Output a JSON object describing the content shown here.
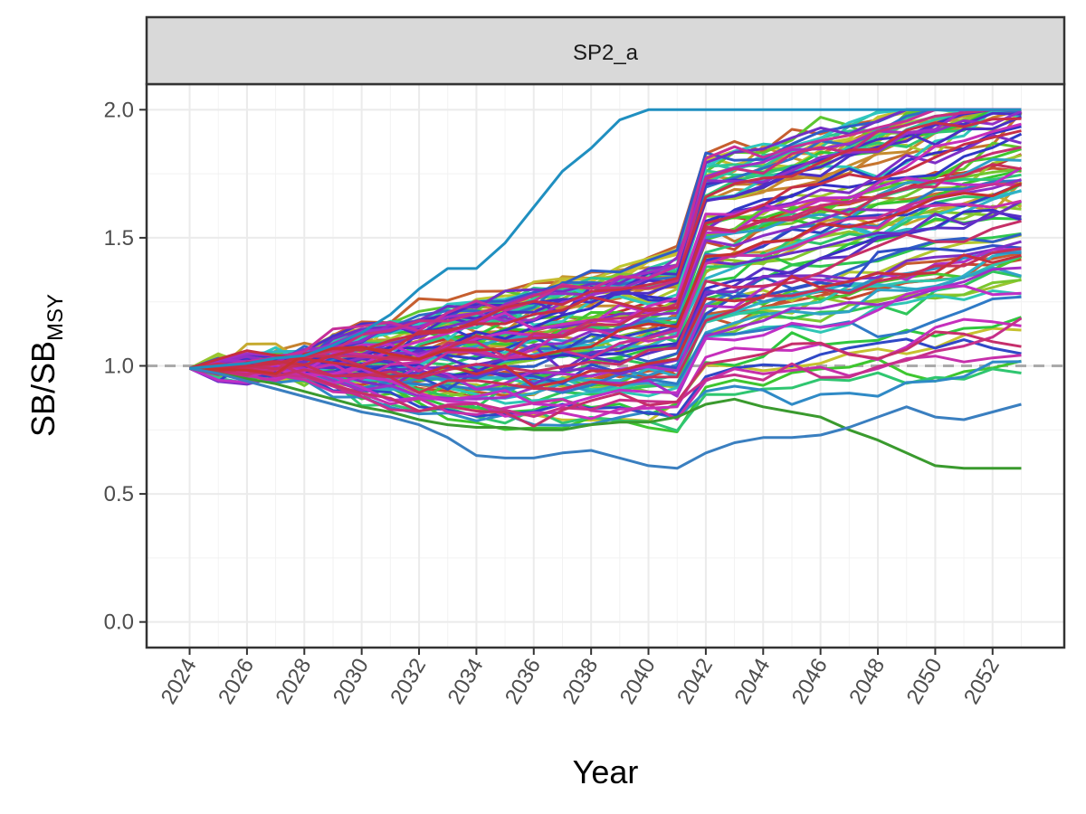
{
  "chart_data": {
    "type": "line",
    "panel": "SP2_a",
    "xlabel": "Year",
    "ylabel": {
      "main": "SB/SB",
      "sub": "MSY"
    },
    "x_range": [
      2024,
      2053
    ],
    "xlim": [
      2022.5,
      2054.5
    ],
    "ylim": [
      -0.1,
      2.1
    ],
    "x_ticks": [
      "2024",
      "2026",
      "2028",
      "2030",
      "2032",
      "2034",
      "2036",
      "2038",
      "2040",
      "2042",
      "2044",
      "2046",
      "2048",
      "2050",
      "2052"
    ],
    "y_ticks": [
      "0.0",
      "0.5",
      "1.0",
      "1.5",
      "2.0"
    ],
    "reference_line": {
      "y": 1.0,
      "style": "dashed",
      "color": "#aaaaaa"
    },
    "grid": true,
    "n_series": 100,
    "palette": "hue (rainbow), one color per simulation",
    "highlight_series": [
      {
        "x": [
          2024,
          2025,
          2026,
          2027,
          2028,
          2029,
          2030,
          2031,
          2032,
          2033,
          2034,
          2035,
          2036,
          2037,
          2038,
          2039,
          2040,
          2041,
          2042,
          2043,
          2044,
          2045,
          2046,
          2047,
          2048,
          2049,
          2050,
          2051,
          2052,
          2053
        ],
        "y": [
          0.99,
          0.97,
          0.95,
          0.93,
          0.9,
          0.87,
          0.84,
          0.82,
          0.79,
          0.77,
          0.76,
          0.76,
          0.75,
          0.75,
          0.77,
          0.78,
          0.78,
          0.8,
          0.85,
          0.87,
          0.84,
          0.82,
          0.8,
          0.75,
          0.71,
          0.66,
          0.61,
          0.6,
          0.6,
          0.6
        ],
        "color": "#3a9a2e"
      },
      {
        "x": [
          2024,
          2025,
          2026,
          2027,
          2028,
          2029,
          2030,
          2031,
          2032,
          2033,
          2034,
          2035,
          2036,
          2037,
          2038,
          2039,
          2040,
          2041,
          2042,
          2043,
          2044,
          2045,
          2046,
          2047,
          2048,
          2049,
          2050,
          2051,
          2052,
          2053
        ],
        "y": [
          0.99,
          0.97,
          0.94,
          0.91,
          0.88,
          0.85,
          0.82,
          0.8,
          0.77,
          0.72,
          0.65,
          0.64,
          0.64,
          0.66,
          0.67,
          0.64,
          0.61,
          0.6,
          0.66,
          0.7,
          0.72,
          0.72,
          0.73,
          0.76,
          0.8,
          0.84,
          0.8,
          0.79,
          0.82,
          0.85
        ],
        "color": "#3a7fc0"
      },
      {
        "x": [
          2024,
          2025,
          2026,
          2027,
          2028,
          2029,
          2030,
          2031,
          2032,
          2033,
          2034,
          2035,
          2036,
          2037,
          2038,
          2039,
          2040,
          2041,
          2042,
          2043,
          2044,
          2045,
          2046,
          2047,
          2048,
          2049,
          2050,
          2051,
          2052,
          2053
        ],
        "y": [
          0.99,
          1.0,
          1.01,
          1.03,
          1.04,
          1.08,
          1.13,
          1.2,
          1.3,
          1.38,
          1.38,
          1.48,
          1.62,
          1.76,
          1.85,
          1.96,
          2.0,
          2.0,
          2.0,
          2.0,
          2.0,
          2.0,
          2.0,
          2.0,
          2.0,
          2.0,
          2.0,
          2.0,
          2.0,
          2.0
        ],
        "color": "#1f8fc0"
      }
    ]
  }
}
